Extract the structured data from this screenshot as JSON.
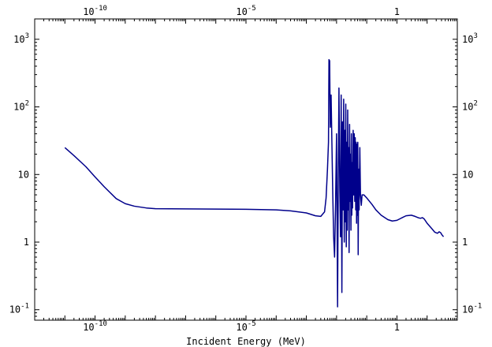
{
  "chart_data": {
    "type": "line",
    "title": "",
    "xlabel": "Incident Energy (MeV)",
    "ylabel": "",
    "x_scale": "log",
    "y_scale": "log",
    "xlim": [
      1e-12,
      100
    ],
    "ylim": [
      0.07,
      2000
    ],
    "x_ticks": [
      {
        "base": "10",
        "exp": "-10",
        "value": 1e-10
      },
      {
        "base": "10",
        "exp": "-5",
        "value": 1e-05
      },
      {
        "base": "1",
        "exp": "",
        "value": 1
      }
    ],
    "y_ticks": [
      {
        "base": "10",
        "exp": "-1",
        "value": 0.1
      },
      {
        "base": "1",
        "exp": "",
        "value": 1
      },
      {
        "base": "10",
        "exp": "",
        "value": 10
      },
      {
        "base": "10",
        "exp": "2",
        "value": 100
      },
      {
        "base": "10",
        "exp": "3",
        "value": 1000
      }
    ],
    "grid": false,
    "line_color": "#00008b",
    "series": [
      {
        "values": [
          [
            1e-11,
            25
          ],
          [
            2e-11,
            19
          ],
          [
            5e-11,
            13
          ],
          [
            1e-10,
            9.2
          ],
          [
            2e-10,
            6.6
          ],
          [
            5e-10,
            4.4
          ],
          [
            1e-09,
            3.7
          ],
          [
            2e-09,
            3.4
          ],
          [
            5e-09,
            3.2
          ],
          [
            1e-08,
            3.12
          ],
          [
            1e-07,
            3.1
          ],
          [
            1e-06,
            3.08
          ],
          [
            1e-05,
            3.06
          ],
          [
            0.0001,
            3.0
          ],
          [
            0.0003,
            2.9
          ],
          [
            0.001,
            2.7
          ],
          [
            0.002,
            2.45
          ],
          [
            0.003,
            2.4
          ],
          [
            0.004,
            2.8
          ],
          [
            0.0045,
            4.5
          ],
          [
            0.005,
            12
          ],
          [
            0.0054,
            30
          ],
          [
            0.0056,
            500
          ],
          [
            0.0059,
            480
          ],
          [
            0.0062,
            50
          ],
          [
            0.0066,
            150
          ],
          [
            0.007,
            30
          ],
          [
            0.0075,
            5
          ],
          [
            0.008,
            1.2
          ],
          [
            0.0086,
            0.6
          ],
          [
            0.0092,
            3
          ],
          [
            0.01,
            40
          ],
          [
            0.0108,
            0.11
          ],
          [
            0.0115,
            15
          ],
          [
            0.012,
            190
          ],
          [
            0.0128,
            6
          ],
          [
            0.0135,
            1.2
          ],
          [
            0.0142,
            150
          ],
          [
            0.015,
            0.18
          ],
          [
            0.0158,
            60
          ],
          [
            0.0165,
            3
          ],
          [
            0.0172,
            130
          ],
          [
            0.018,
            1
          ],
          [
            0.0188,
            45
          ],
          [
            0.0195,
            2
          ],
          [
            0.0202,
            110
          ],
          [
            0.021,
            0.85
          ],
          [
            0.0218,
            30
          ],
          [
            0.0226,
            1.5
          ],
          [
            0.0234,
            90
          ],
          [
            0.0242,
            3
          ],
          [
            0.025,
            25
          ],
          [
            0.026,
            0.7
          ],
          [
            0.027,
            55
          ],
          [
            0.028,
            4
          ],
          [
            0.029,
            20
          ],
          [
            0.03,
            1.5
          ],
          [
            0.031,
            40
          ],
          [
            0.032,
            2.5
          ],
          [
            0.033,
            15
          ],
          [
            0.034,
            3.2
          ],
          [
            0.0355,
            45
          ],
          [
            0.037,
            5
          ],
          [
            0.0385,
            40
          ],
          [
            0.04,
            4
          ],
          [
            0.0415,
            35
          ],
          [
            0.043,
            3
          ],
          [
            0.0445,
            30
          ],
          [
            0.046,
            1.9
          ],
          [
            0.0475,
            28
          ],
          [
            0.049,
            2.5
          ],
          [
            0.0505,
            30
          ],
          [
            0.052,
            0.65
          ],
          [
            0.054,
            12
          ],
          [
            0.056,
            3
          ],
          [
            0.059,
            25
          ],
          [
            0.062,
            5
          ],
          [
            0.066,
            3.5
          ],
          [
            0.07,
            5
          ],
          [
            0.08,
            5
          ],
          [
            0.1,
            4.5
          ],
          [
            0.15,
            3.6
          ],
          [
            0.2,
            3
          ],
          [
            0.3,
            2.5
          ],
          [
            0.5,
            2.15
          ],
          [
            0.7,
            2.05
          ],
          [
            1,
            2.1
          ],
          [
            1.5,
            2.3
          ],
          [
            2,
            2.45
          ],
          [
            3,
            2.5
          ],
          [
            4,
            2.4
          ],
          [
            5,
            2.3
          ],
          [
            6,
            2.25
          ],
          [
            7,
            2.3
          ],
          [
            8,
            2.2
          ],
          [
            10,
            1.9
          ],
          [
            14,
            1.6
          ],
          [
            18,
            1.4
          ],
          [
            22,
            1.35
          ],
          [
            25,
            1.42
          ],
          [
            28,
            1.38
          ],
          [
            31,
            1.28
          ],
          [
            35,
            1.2
          ]
        ]
      }
    ]
  }
}
